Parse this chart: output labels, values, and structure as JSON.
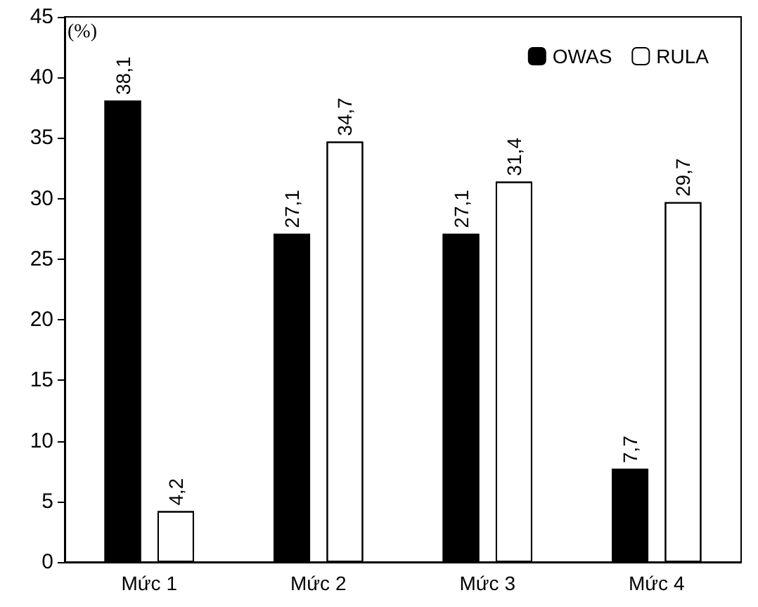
{
  "chart_data": {
    "type": "bar",
    "ylabel": "(%)",
    "categories": [
      "Mức 1",
      "Mức 2",
      "Mức 3",
      "Mức 4"
    ],
    "series": [
      {
        "name": "OWAS",
        "color": "#000000",
        "values": [
          38.1,
          27.1,
          27.1,
          7.7
        ],
        "value_labels": [
          "38,1",
          "27,1",
          "27,1",
          "7,7"
        ]
      },
      {
        "name": "RULA",
        "color": "#ffffff",
        "values": [
          4.2,
          34.7,
          31.4,
          29.7
        ],
        "value_labels": [
          "4,2",
          "34,7",
          "31,4",
          "29,7"
        ]
      }
    ],
    "ylim": [
      0,
      45
    ],
    "yticks": [
      0,
      5,
      10,
      15,
      20,
      25,
      30,
      35,
      40,
      45
    ],
    "grid": false,
    "legend": "top right"
  }
}
